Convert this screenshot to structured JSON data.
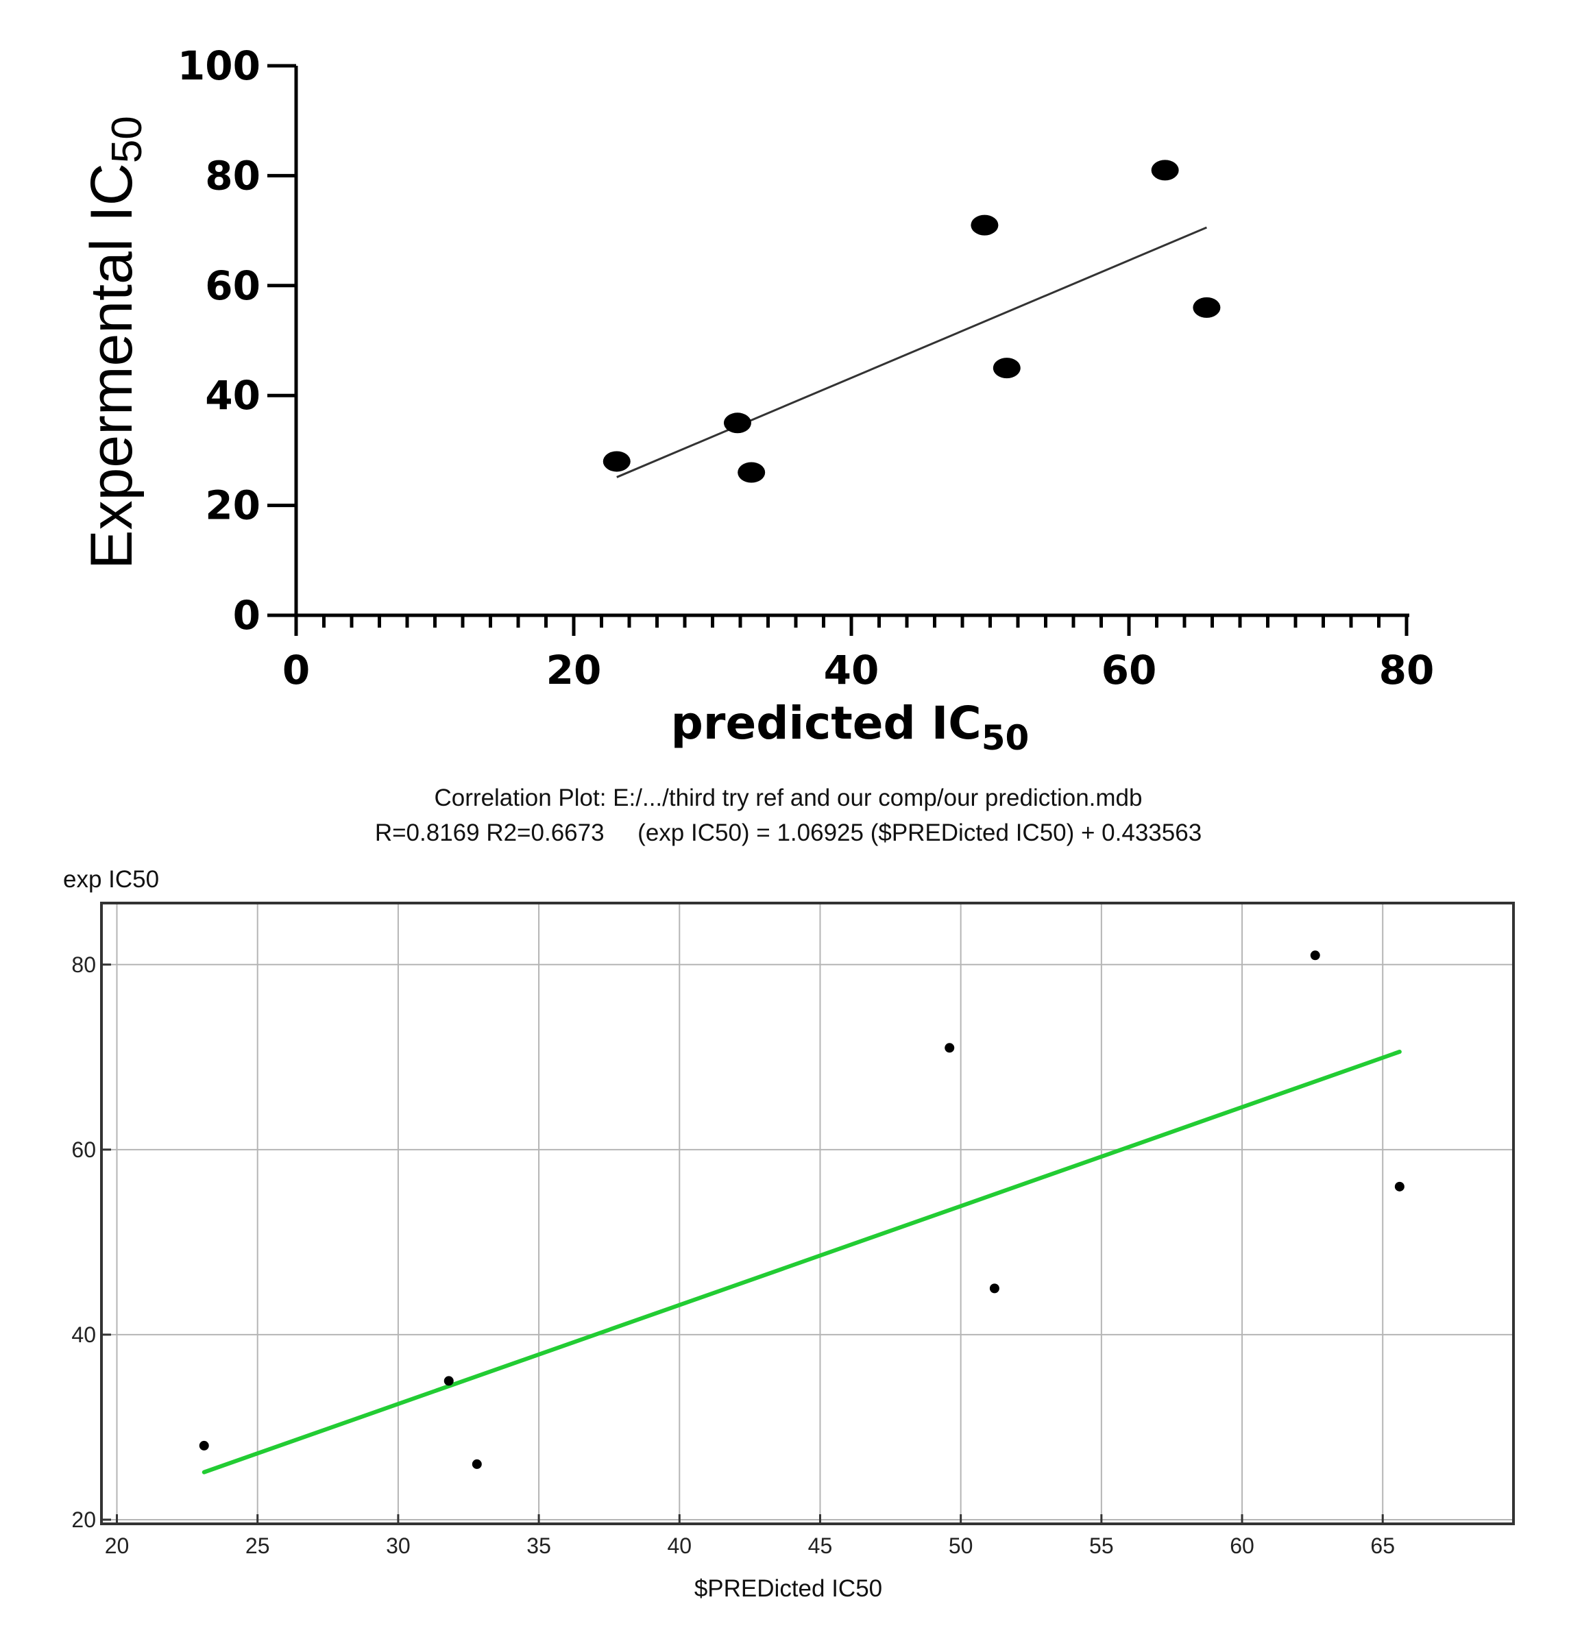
{
  "chart_data": [
    {
      "type": "scatter",
      "xlabel": "predicted IC",
      "xlabel_sub": "50",
      "ylabel": "Expermental IC",
      "ylabel_sub": "50",
      "xlim": [
        0,
        80
      ],
      "ylim": [
        0,
        100
      ],
      "xticks": [
        "0",
        "20",
        "40",
        "60",
        "80"
      ],
      "yticks": [
        "0",
        "20",
        "40",
        "60",
        "80",
        "100"
      ],
      "points": [
        {
          "x": 23.1,
          "y": 28
        },
        {
          "x": 31.8,
          "y": 35
        },
        {
          "x": 32.8,
          "y": 26
        },
        {
          "x": 49.6,
          "y": 71
        },
        {
          "x": 51.2,
          "y": 45
        },
        {
          "x": 62.6,
          "y": 81
        },
        {
          "x": 65.6,
          "y": 56
        }
      ],
      "trendline": {
        "slope": 1.06925,
        "intercept": 0.433563,
        "x_range": [
          23.1,
          65.6
        ]
      },
      "grid": false
    },
    {
      "type": "scatter",
      "title": "Correlation Plot: E:/.../third try ref and our comp/our prediction.mdb",
      "subtitle": "R=0.8169 R2=0.6673     (exp IC50) = 1.06925 ($PREDicted IC50) + 0.433563",
      "xlabel": "$PREDicted IC50",
      "ylabel": "exp IC50",
      "xlim": [
        19.5,
        69.6
      ],
      "ylim": [
        19.7,
        86.5
      ],
      "xticks": [
        "20",
        "25",
        "30",
        "35",
        "40",
        "45",
        "50",
        "55",
        "60",
        "65"
      ],
      "yticks": [
        "20",
        "40",
        "60",
        "80"
      ],
      "points": [
        {
          "x": 23.1,
          "y": 28
        },
        {
          "x": 31.8,
          "y": 35
        },
        {
          "x": 32.8,
          "y": 26
        },
        {
          "x": 49.6,
          "y": 71
        },
        {
          "x": 51.2,
          "y": 45
        },
        {
          "x": 62.6,
          "y": 81
        },
        {
          "x": 65.6,
          "y": 56
        }
      ],
      "trendline": {
        "slope": 1.06925,
        "intercept": 0.433563,
        "x_range": [
          23.1,
          65.6
        ],
        "color": "#22cc33"
      },
      "grid": true
    }
  ]
}
